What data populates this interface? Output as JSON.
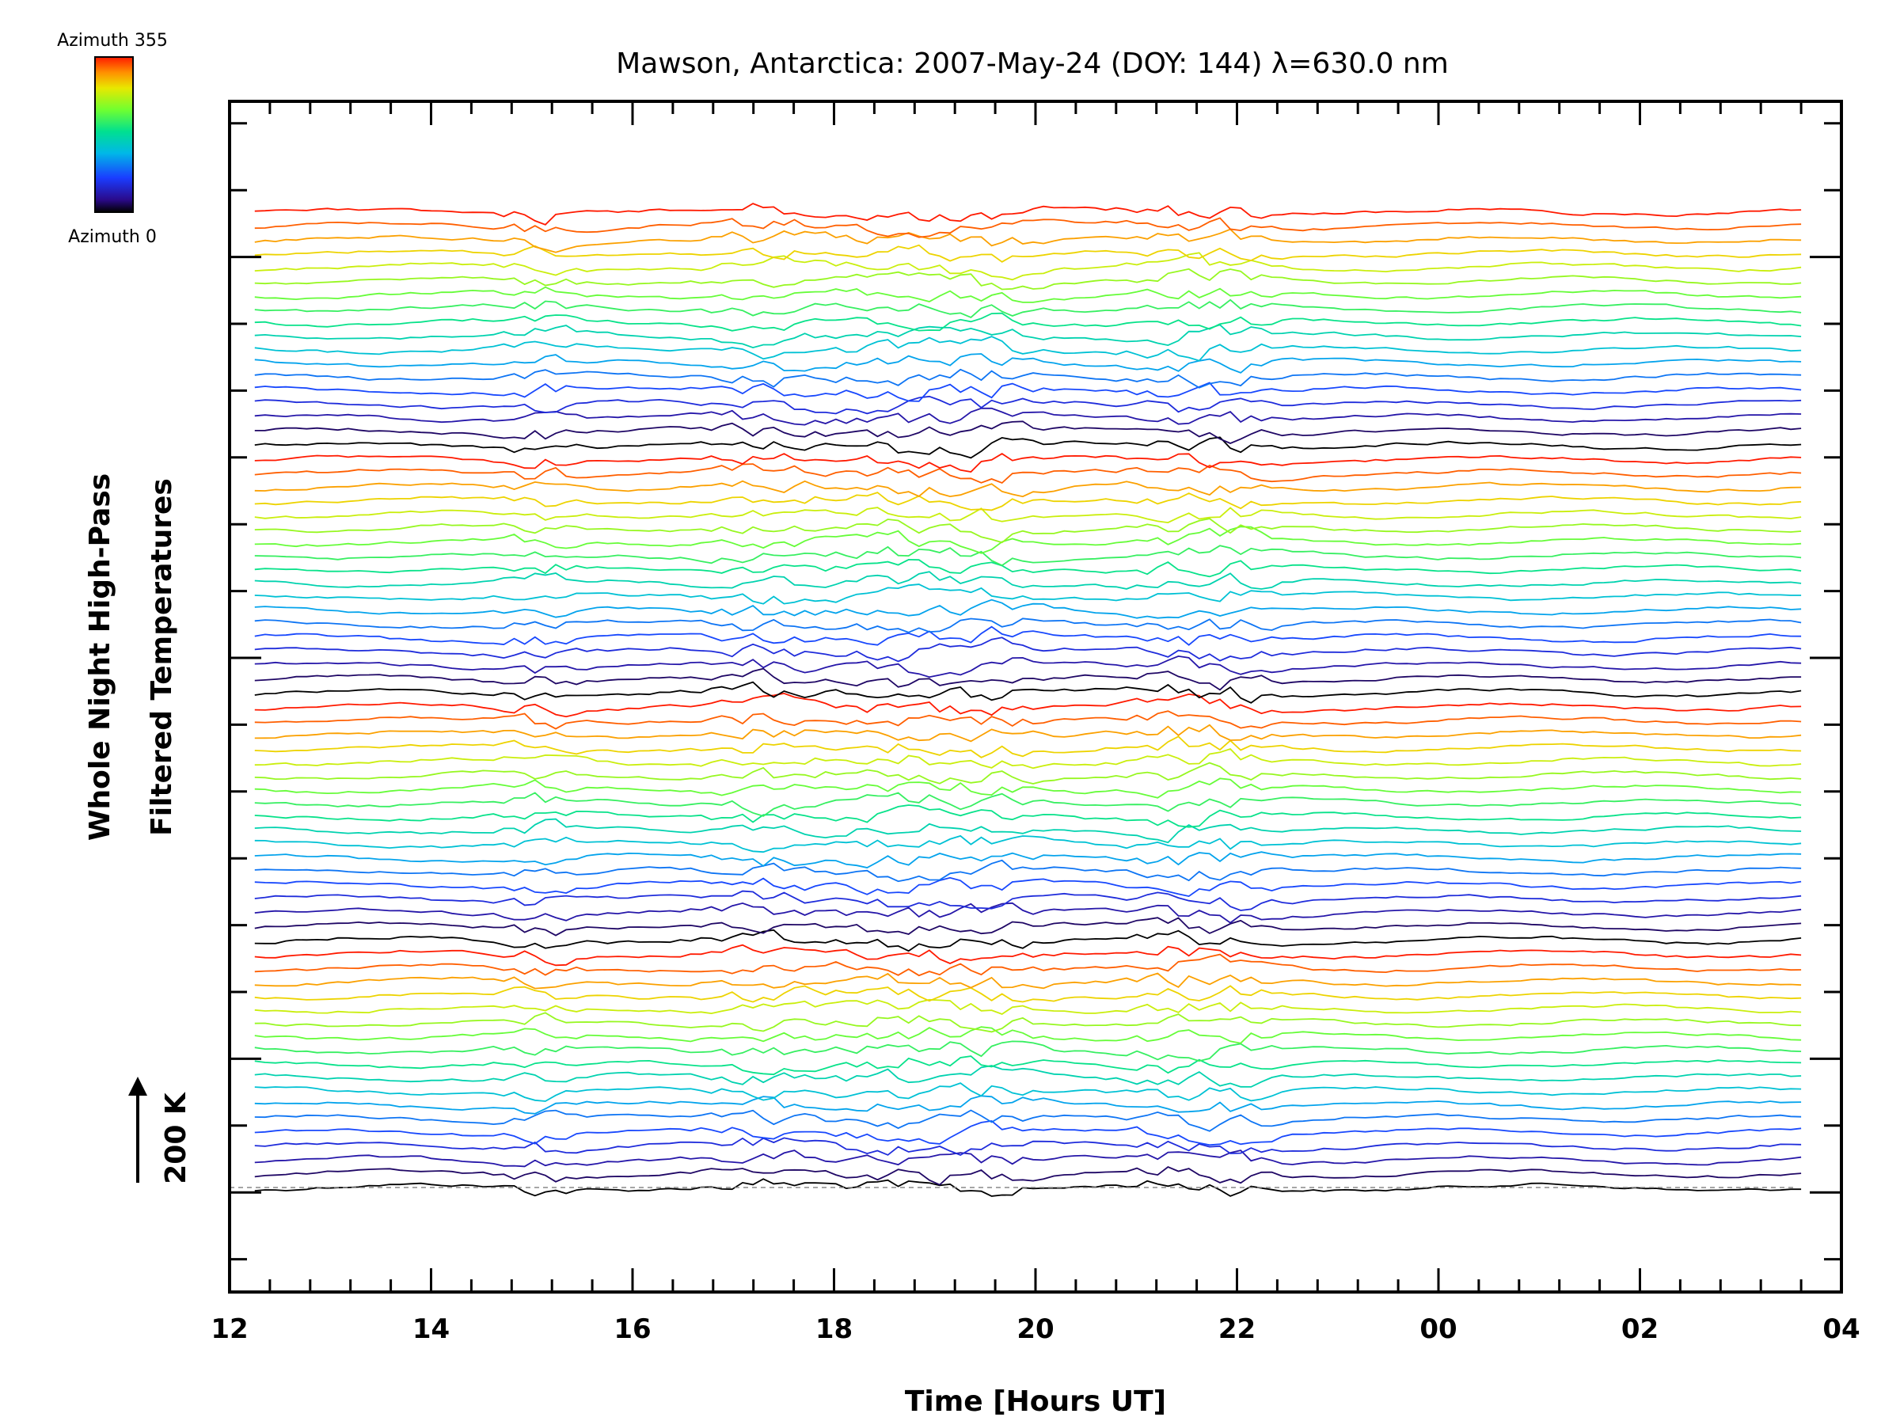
{
  "chart_data": {
    "type": "line",
    "title": "Mawson, Antarctica: 2007-May-24 (DOY: 144) λ=630.0 nm",
    "xlabel": "Time [Hours UT]",
    "ylabel_line1": "Whole Night High-Pass",
    "ylabel_line2": "Filtered Temperatures",
    "scale_bar_label": "200 K",
    "scale_bar_value_k": 200,
    "x_tick_labels": [
      "12",
      "14",
      "16",
      "18",
      "20",
      "22",
      "00",
      "02",
      "04"
    ],
    "xlim_hours": [
      12,
      28
    ],
    "data_range_hours": [
      12.25,
      27.6
    ],
    "series_count": 72,
    "legend": {
      "top_label": "Azimuth 355",
      "bottom_label": "Azimuth 0",
      "azimuth_range_deg": [
        0,
        355
      ],
      "colormap": "rainbow"
    },
    "grid": false,
    "baseline_dashed": true
  }
}
